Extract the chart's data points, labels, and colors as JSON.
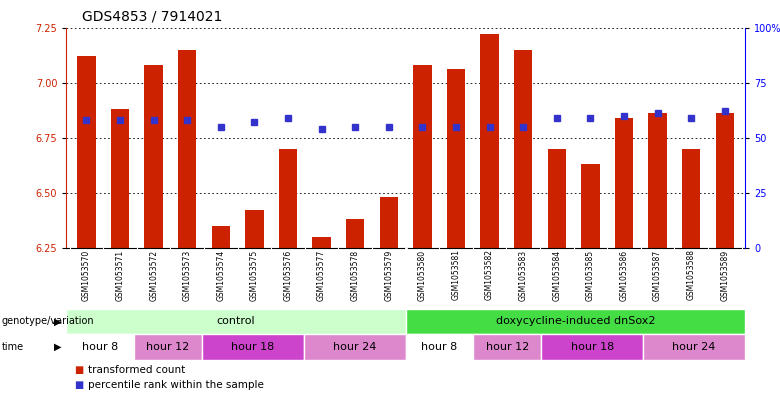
{
  "title": "GDS4853 / 7914021",
  "samples": [
    "GSM1053570",
    "GSM1053571",
    "GSM1053572",
    "GSM1053573",
    "GSM1053574",
    "GSM1053575",
    "GSM1053576",
    "GSM1053577",
    "GSM1053578",
    "GSM1053579",
    "GSM1053580",
    "GSM1053581",
    "GSM1053582",
    "GSM1053583",
    "GSM1053584",
    "GSM1053585",
    "GSM1053586",
    "GSM1053587",
    "GSM1053588",
    "GSM1053589"
  ],
  "bar_values": [
    7.12,
    6.88,
    7.08,
    7.15,
    6.35,
    6.42,
    6.7,
    6.3,
    6.38,
    6.48,
    7.08,
    7.06,
    7.22,
    7.15,
    6.7,
    6.63,
    6.84,
    6.86,
    6.7,
    6.86
  ],
  "dot_values": [
    6.83,
    6.83,
    6.83,
    6.83,
    6.8,
    6.82,
    6.84,
    6.79,
    6.8,
    6.8,
    6.8,
    6.8,
    6.8,
    6.8,
    6.84,
    6.84,
    6.85,
    6.86,
    6.84,
    6.87
  ],
  "ylim_left": [
    6.25,
    7.25
  ],
  "ylim_right": [
    0,
    100
  ],
  "yticks_left": [
    6.25,
    6.5,
    6.75,
    7.0,
    7.25
  ],
  "yticks_right": [
    0,
    25,
    50,
    75,
    100
  ],
  "ytick_labels_right": [
    "0",
    "25",
    "50",
    "75",
    "100%"
  ],
  "bar_color": "#cc2200",
  "dot_color": "#3333cc",
  "genotype_groups": [
    {
      "label": "control",
      "start": 0,
      "end": 10,
      "color": "#ccffcc"
    },
    {
      "label": "doxycycline-induced dnSox2",
      "start": 10,
      "end": 20,
      "color": "#44dd44"
    }
  ],
  "time_groups": [
    {
      "label": "hour 8",
      "start": 0,
      "end": 2,
      "color": "#ffffff"
    },
    {
      "label": "hour 12",
      "start": 2,
      "end": 4,
      "color": "#dd88cc"
    },
    {
      "label": "hour 18",
      "start": 4,
      "end": 7,
      "color": "#cc44cc"
    },
    {
      "label": "hour 24",
      "start": 7,
      "end": 10,
      "color": "#dd88cc"
    },
    {
      "label": "hour 8",
      "start": 10,
      "end": 12,
      "color": "#ffffff"
    },
    {
      "label": "hour 12",
      "start": 12,
      "end": 14,
      "color": "#dd88cc"
    },
    {
      "label": "hour 18",
      "start": 14,
      "end": 17,
      "color": "#cc44cc"
    },
    {
      "label": "hour 24",
      "start": 17,
      "end": 20,
      "color": "#dd88cc"
    }
  ],
  "title_fontsize": 10,
  "tick_fontsize": 7,
  "label_fontsize": 7.5,
  "row_label_fontsize": 7,
  "sample_tick_fontsize": 5.5,
  "time_fontsize": 8,
  "geno_fontsize": 8
}
